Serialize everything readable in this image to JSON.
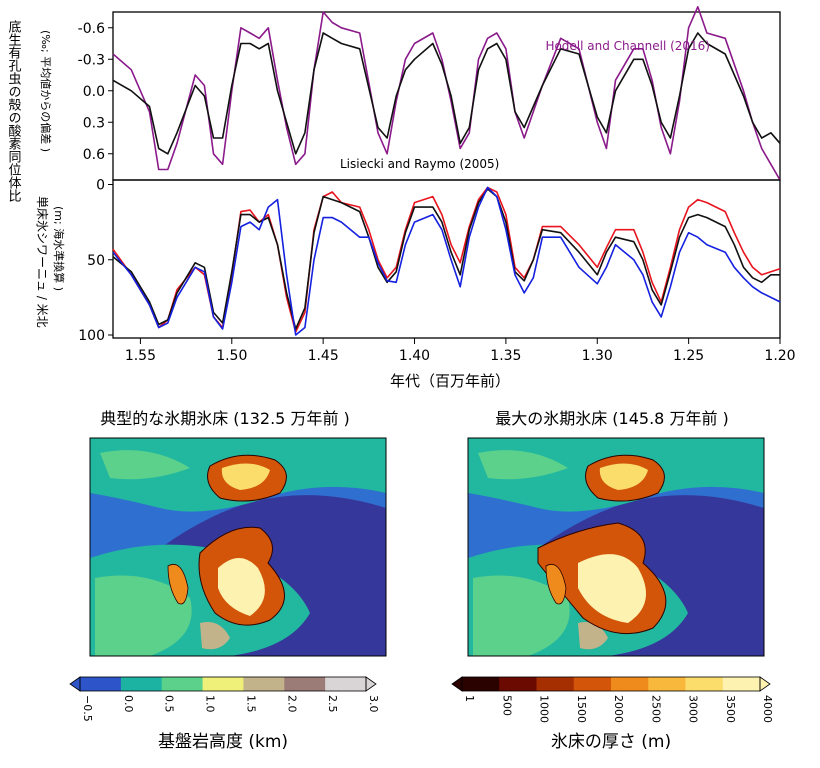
{
  "chart_data": [
    {
      "type": "line",
      "ylabel_left": "底生有孔虫の殻の酸素同位体比",
      "ylabel": "(‰; 平均値からの偏差 )",
      "ylim": [
        0.85,
        -0.75
      ],
      "y_ticks": [
        "-0.6",
        "-0.3",
        "0.0",
        "0.3",
        "0.6"
      ],
      "y_tick_values": [
        -0.6,
        -0.3,
        0.0,
        0.3,
        0.6
      ],
      "series": [
        {
          "name": "Hodell and Channell (2016)",
          "color": "#8b1a8b",
          "x": [
            1.565,
            1.555,
            1.545,
            1.54,
            1.535,
            1.53,
            1.52,
            1.515,
            1.51,
            1.505,
            1.5,
            1.495,
            1.49,
            1.485,
            1.48,
            1.475,
            1.47,
            1.465,
            1.46,
            1.455,
            1.45,
            1.445,
            1.44,
            1.43,
            1.42,
            1.415,
            1.41,
            1.405,
            1.4,
            1.39,
            1.385,
            1.38,
            1.375,
            1.37,
            1.365,
            1.36,
            1.355,
            1.35,
            1.345,
            1.34,
            1.335,
            1.33,
            1.32,
            1.31,
            1.3,
            1.295,
            1.29,
            1.28,
            1.275,
            1.27,
            1.265,
            1.26,
            1.255,
            1.25,
            1.245,
            1.24,
            1.23,
            1.22,
            1.215,
            1.21,
            1.205,
            1.2
          ],
          "values": [
            -0.35,
            -0.2,
            0.2,
            0.75,
            0.75,
            0.5,
            -0.15,
            -0.05,
            0.6,
            0.7,
            0.0,
            -0.6,
            -0.55,
            -0.5,
            -0.6,
            -0.1,
            0.35,
            0.7,
            0.6,
            -0.2,
            -0.75,
            -0.65,
            -0.6,
            -0.55,
            0.4,
            0.6,
            0.1,
            -0.3,
            -0.45,
            -0.55,
            -0.3,
            0.1,
            0.55,
            0.4,
            -0.3,
            -0.5,
            -0.55,
            -0.4,
            0.2,
            0.45,
            0.2,
            -0.05,
            -0.5,
            -0.4,
            0.3,
            0.55,
            -0.1,
            -0.4,
            -0.4,
            -0.1,
            0.35,
            0.6,
            0.1,
            -0.6,
            -0.8,
            -0.55,
            -0.5,
            0.0,
            0.3,
            0.55,
            0.7,
            0.85
          ]
        },
        {
          "name": "Lisiecki and Raymo (2005)",
          "color": "#111111",
          "x": [
            1.565,
            1.555,
            1.545,
            1.54,
            1.535,
            1.53,
            1.52,
            1.515,
            1.51,
            1.505,
            1.5,
            1.495,
            1.49,
            1.485,
            1.48,
            1.475,
            1.47,
            1.465,
            1.46,
            1.455,
            1.45,
            1.445,
            1.44,
            1.43,
            1.42,
            1.415,
            1.41,
            1.405,
            1.4,
            1.39,
            1.385,
            1.38,
            1.375,
            1.37,
            1.365,
            1.36,
            1.355,
            1.35,
            1.345,
            1.34,
            1.335,
            1.33,
            1.32,
            1.31,
            1.3,
            1.295,
            1.29,
            1.28,
            1.275,
            1.27,
            1.265,
            1.26,
            1.255,
            1.25,
            1.245,
            1.24,
            1.23,
            1.22,
            1.215,
            1.21,
            1.205,
            1.2
          ],
          "values": [
            -0.1,
            0.0,
            0.15,
            0.55,
            0.6,
            0.4,
            -0.05,
            0.05,
            0.45,
            0.45,
            -0.05,
            -0.45,
            -0.45,
            -0.4,
            -0.45,
            0.0,
            0.3,
            0.6,
            0.4,
            -0.2,
            -0.55,
            -0.5,
            -0.45,
            -0.4,
            0.35,
            0.45,
            0.05,
            -0.2,
            -0.3,
            -0.45,
            -0.25,
            0.05,
            0.5,
            0.35,
            -0.2,
            -0.4,
            -0.45,
            -0.3,
            0.2,
            0.35,
            0.15,
            -0.05,
            -0.4,
            -0.35,
            0.25,
            0.4,
            0.0,
            -0.3,
            -0.3,
            -0.05,
            0.3,
            0.45,
            0.05,
            -0.4,
            -0.55,
            -0.45,
            -0.35,
            0.05,
            0.3,
            0.45,
            0.4,
            0.5
          ]
        }
      ]
    },
    {
      "type": "line",
      "ylabel_left": "単床氷シワーニュ / 米北",
      "ylabel": "(m; 海水準換算 )",
      "ylim": [
        102,
        -3
      ],
      "y_ticks": [
        "0",
        "50",
        "100"
      ],
      "y_tick_values": [
        0,
        50,
        100
      ],
      "xlabel": "年代（百万年前）",
      "xlim": [
        1.565,
        1.2
      ],
      "x_ticks": [
        "1.55",
        "1.50",
        "1.45",
        "1.40",
        "1.35",
        "1.30",
        "1.25",
        "1.20"
      ],
      "x_tick_values": [
        1.55,
        1.5,
        1.45,
        1.4,
        1.35,
        1.3,
        1.25,
        1.2
      ],
      "series": [
        {
          "color": "#e8141e",
          "x": [
            1.565,
            1.555,
            1.545,
            1.54,
            1.535,
            1.53,
            1.52,
            1.515,
            1.51,
            1.505,
            1.5,
            1.495,
            1.49,
            1.485,
            1.48,
            1.475,
            1.47,
            1.465,
            1.46,
            1.455,
            1.45,
            1.445,
            1.44,
            1.43,
            1.425,
            1.42,
            1.415,
            1.41,
            1.405,
            1.4,
            1.39,
            1.385,
            1.38,
            1.375,
            1.37,
            1.365,
            1.36,
            1.355,
            1.35,
            1.345,
            1.34,
            1.335,
            1.33,
            1.32,
            1.31,
            1.3,
            1.295,
            1.29,
            1.28,
            1.275,
            1.27,
            1.265,
            1.26,
            1.255,
            1.25,
            1.245,
            1.24,
            1.23,
            1.225,
            1.22,
            1.215,
            1.21,
            1.205,
            1.2
          ],
          "values": [
            43,
            60,
            80,
            95,
            90,
            70,
            55,
            60,
            88,
            95,
            60,
            18,
            17,
            25,
            20,
            40,
            75,
            98,
            85,
            30,
            8,
            5,
            12,
            15,
            30,
            50,
            62,
            55,
            30,
            12,
            8,
            20,
            40,
            52,
            28,
            10,
            2,
            5,
            20,
            55,
            62,
            50,
            28,
            28,
            40,
            55,
            42,
            30,
            30,
            45,
            65,
            78,
            55,
            30,
            15,
            10,
            12,
            18,
            32,
            45,
            55,
            60,
            58,
            56
          ]
        },
        {
          "color": "#111111",
          "x": [
            1.565,
            1.555,
            1.545,
            1.54,
            1.535,
            1.53,
            1.52,
            1.515,
            1.51,
            1.505,
            1.5,
            1.495,
            1.49,
            1.485,
            1.48,
            1.475,
            1.47,
            1.465,
            1.46,
            1.455,
            1.45,
            1.445,
            1.44,
            1.43,
            1.425,
            1.42,
            1.415,
            1.41,
            1.405,
            1.4,
            1.39,
            1.385,
            1.38,
            1.375,
            1.37,
            1.365,
            1.36,
            1.355,
            1.35,
            1.345,
            1.34,
            1.335,
            1.33,
            1.32,
            1.31,
            1.3,
            1.295,
            1.29,
            1.28,
            1.275,
            1.27,
            1.265,
            1.26,
            1.255,
            1.25,
            1.245,
            1.24,
            1.23,
            1.225,
            1.22,
            1.215,
            1.21,
            1.205,
            1.2
          ],
          "values": [
            48,
            58,
            78,
            93,
            90,
            72,
            52,
            55,
            85,
            92,
            58,
            20,
            20,
            25,
            22,
            40,
            72,
            96,
            82,
            32,
            8,
            10,
            12,
            18,
            35,
            55,
            65,
            58,
            32,
            15,
            15,
            25,
            45,
            60,
            30,
            12,
            3,
            8,
            25,
            58,
            64,
            50,
            30,
            32,
            45,
            60,
            45,
            35,
            38,
            50,
            70,
            80,
            58,
            35,
            22,
            20,
            22,
            28,
            40,
            55,
            62,
            65,
            60,
            60
          ]
        },
        {
          "color": "#1521e0",
          "x": [
            1.565,
            1.555,
            1.545,
            1.54,
            1.535,
            1.53,
            1.52,
            1.515,
            1.51,
            1.505,
            1.5,
            1.495,
            1.49,
            1.485,
            1.48,
            1.475,
            1.47,
            1.465,
            1.46,
            1.455,
            1.45,
            1.445,
            1.44,
            1.43,
            1.425,
            1.42,
            1.415,
            1.41,
            1.405,
            1.4,
            1.39,
            1.385,
            1.38,
            1.375,
            1.37,
            1.365,
            1.36,
            1.355,
            1.35,
            1.345,
            1.34,
            1.335,
            1.33,
            1.32,
            1.31,
            1.3,
            1.295,
            1.29,
            1.28,
            1.275,
            1.27,
            1.265,
            1.26,
            1.255,
            1.25,
            1.245,
            1.24,
            1.23,
            1.225,
            1.22,
            1.215,
            1.21,
            1.205,
            1.2
          ],
          "values": [
            45,
            60,
            80,
            95,
            92,
            75,
            55,
            58,
            88,
            96,
            65,
            28,
            25,
            30,
            15,
            10,
            60,
            100,
            95,
            50,
            22,
            22,
            25,
            35,
            35,
            52,
            64,
            65,
            40,
            25,
            20,
            30,
            50,
            68,
            35,
            15,
            2,
            8,
            30,
            60,
            72,
            62,
            35,
            35,
            55,
            66,
            55,
            40,
            50,
            60,
            78,
            88,
            68,
            45,
            32,
            35,
            40,
            45,
            55,
            62,
            68,
            72,
            75,
            78
          ]
        }
      ]
    }
  ],
  "maps": {
    "left_title": "典型的な氷期氷床 (132.5 万年前 )",
    "right_title": "最大の氷期氷床 (145.8 万年前 )"
  },
  "colorbars": {
    "left": {
      "label": "基盤岩高度 (km)",
      "ticks": [
        "−0.5",
        "0.0",
        "0.5",
        "1.0",
        "1.5",
        "2.0",
        "2.5",
        "3.0"
      ],
      "colors": [
        "#2d54c8",
        "#1cb3a3",
        "#5bd18c",
        "#eef07a",
        "#c3b38a",
        "#9b7c77",
        "#d9d4d6"
      ]
    },
    "right": {
      "label": "氷床の厚さ (m)",
      "ticks": [
        "1",
        "500",
        "1000",
        "1500",
        "2000",
        "2500",
        "3000",
        "3500",
        "4000"
      ],
      "colors": [
        "#2a0200",
        "#6b0a00",
        "#a52f00",
        "#d2550a",
        "#ef8a1c",
        "#f8b83c",
        "#fbdd6c",
        "#fdf2b0"
      ]
    }
  }
}
